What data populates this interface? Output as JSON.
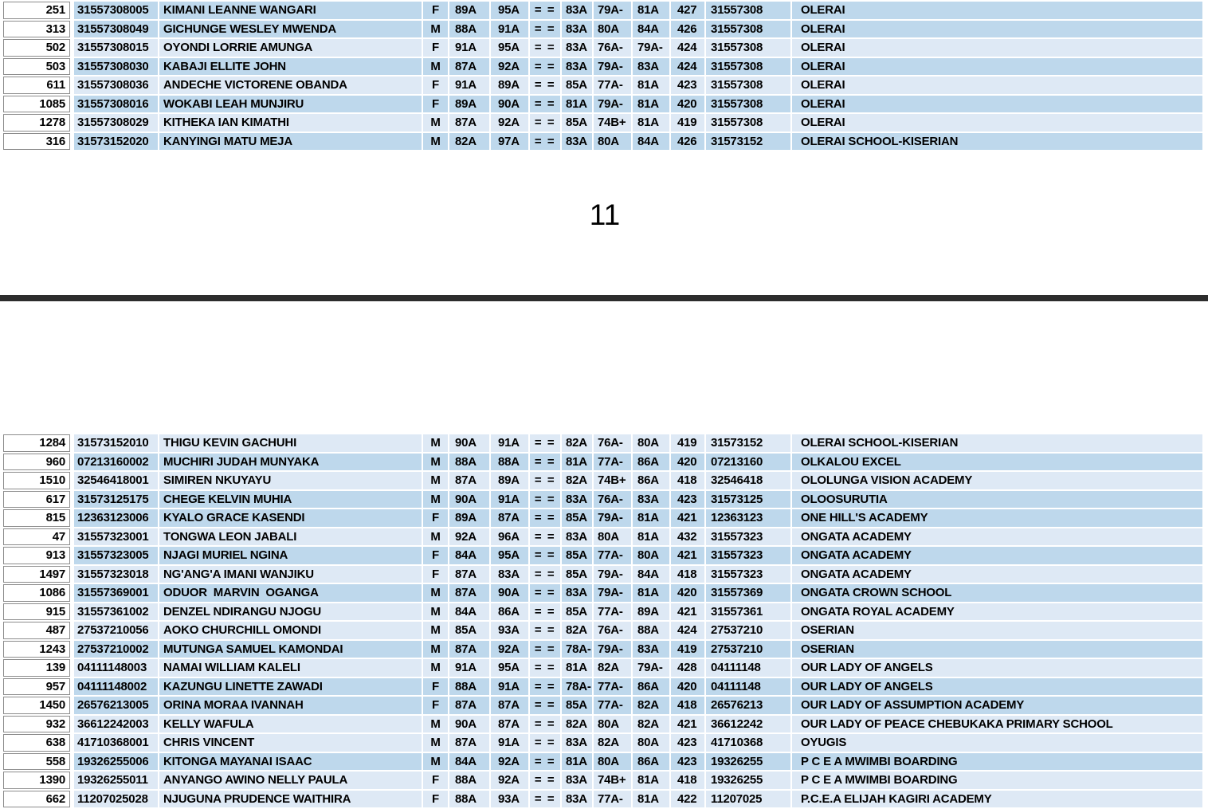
{
  "page": {
    "page_number": "11"
  },
  "divider": {
    "color": "#2d2d2d"
  },
  "colors": {
    "band_medium": "#BED8EC",
    "band_light": "#DEE9F5",
    "rank_cell_border": "#8C8C8C",
    "text": "#000000",
    "background": "#FFFFFF"
  },
  "sections": [
    {
      "name": "top-table",
      "rows": [
        {
          "rank": "251",
          "index_number": "31557308005",
          "name": "KIMANI LEANNE WANGARI",
          "gender": "F",
          "score1": "89A",
          "score2": "95A",
          "masked": "= =",
          "score3": "83A",
          "score4": "79A-",
          "score5": "81A",
          "total": "427",
          "school_code": "31557308",
          "school_name": "OLERAI",
          "shade": "medium"
        },
        {
          "rank": "313",
          "index_number": "31557308049",
          "name": "GICHUNGE WESLEY MWENDA",
          "gender": "M",
          "score1": "88A",
          "score2": "91A",
          "masked": "= =",
          "score3": "83A",
          "score4": "80A",
          "score5": "84A",
          "total": "426",
          "school_code": "31557308",
          "school_name": "OLERAI",
          "shade": "medium"
        },
        {
          "rank": "502",
          "index_number": "31557308015",
          "name": "OYONDI LORRIE AMUNGA",
          "gender": "F",
          "score1": "91A",
          "score2": "95A",
          "masked": "= =",
          "score3": "83A",
          "score4": "76A-",
          "score5": "79A-",
          "total": "424",
          "school_code": "31557308",
          "school_name": "OLERAI",
          "shade": "light"
        },
        {
          "rank": "503",
          "index_number": "31557308030",
          "name": "KABAJI ELLITE JOHN",
          "gender": "M",
          "score1": "87A",
          "score2": "92A",
          "masked": "= =",
          "score3": "83A",
          "score4": "79A-",
          "score5": "83A",
          "total": "424",
          "school_code": "31557308",
          "school_name": "OLERAI",
          "shade": "medium"
        },
        {
          "rank": "611",
          "index_number": "31557308036",
          "name": "ANDECHE VICTORENE OBANDA",
          "gender": "F",
          "score1": "91A",
          "score2": "89A",
          "masked": "= =",
          "score3": "85A",
          "score4": "77A-",
          "score5": "81A",
          "total": "423",
          "school_code": "31557308",
          "school_name": "OLERAI",
          "shade": "light"
        },
        {
          "rank": "1085",
          "index_number": "31557308016",
          "name": "WOKABI LEAH MUNJIRU",
          "gender": "F",
          "score1": "89A",
          "score2": "90A",
          "masked": "= =",
          "score3": "81A",
          "score4": "79A-",
          "score5": "81A",
          "total": "420",
          "school_code": "31557308",
          "school_name": "OLERAI",
          "shade": "medium"
        },
        {
          "rank": "1278",
          "index_number": "31557308029",
          "name": "KITHEKA IAN KIMATHI",
          "gender": "M",
          "score1": "87A",
          "score2": "92A",
          "masked": "= =",
          "score3": "85A",
          "score4": "74B+",
          "score5": "81A",
          "total": "419",
          "school_code": "31557308",
          "school_name": "OLERAI",
          "shade": "light"
        },
        {
          "rank": "316",
          "index_number": "31573152020",
          "name": "KANYINGI MATU MEJA",
          "gender": "M",
          "score1": "82A",
          "score2": "97A",
          "masked": "= =",
          "score3": "83A",
          "score4": "80A",
          "score5": "84A",
          "total": "426",
          "school_code": "31573152",
          "school_name": "OLERAI SCHOOL-KISERIAN",
          "shade": "medium"
        }
      ]
    },
    {
      "name": "bottom-table",
      "rows": [
        {
          "rank": "1284",
          "index_number": "31573152010",
          "name": "THIGU KEVIN GACHUHI",
          "gender": "M",
          "score1": "90A",
          "score2": "91A",
          "masked": "= =",
          "score3": "82A",
          "score4": "76A-",
          "score5": "80A",
          "total": "419",
          "school_code": "31573152",
          "school_name": "OLERAI SCHOOL-KISERIAN",
          "shade": "light"
        },
        {
          "rank": "960",
          "index_number": "07213160002",
          "name": "MUCHIRI JUDAH MUNYAKA",
          "gender": "M",
          "score1": "88A",
          "score2": "88A",
          "masked": "= =",
          "score3": "81A",
          "score4": "77A-",
          "score5": "86A",
          "total": "420",
          "school_code": "07213160",
          "school_name": "OLKALOU EXCEL",
          "shade": "medium"
        },
        {
          "rank": "1510",
          "index_number": "32546418001",
          "name": "SIMIREN NKUYAYU",
          "gender": "M",
          "score1": "87A",
          "score2": "89A",
          "masked": "= =",
          "score3": "82A",
          "score4": "74B+",
          "score5": "86A",
          "total": "418",
          "school_code": "32546418",
          "school_name": "OLOLUNGA VISION ACADEMY",
          "shade": "light"
        },
        {
          "rank": "617",
          "index_number": "31573125175",
          "name": "CHEGE KELVIN MUHIA",
          "gender": "M",
          "score1": "90A",
          "score2": "91A",
          "masked": "= =",
          "score3": "83A",
          "score4": "76A-",
          "score5": "83A",
          "total": "423",
          "school_code": "31573125",
          "school_name": "OLOOSURUTIA",
          "shade": "medium"
        },
        {
          "rank": "815",
          "index_number": "12363123006",
          "name": "KYALO GRACE KASENDI",
          "gender": "F",
          "score1": "89A",
          "score2": "87A",
          "masked": "= =",
          "score3": "85A",
          "score4": "79A-",
          "score5": "81A",
          "total": "421",
          "school_code": "12363123",
          "school_name": "ONE HILL'S ACADEMY",
          "shade": "medium"
        },
        {
          "rank": "47",
          "index_number": "31557323001",
          "name": "TONGWA LEON JABALI",
          "gender": "M",
          "score1": "92A",
          "score2": "96A",
          "masked": "= =",
          "score3": "83A",
          "score4": "80A",
          "score5": "81A",
          "total": "432",
          "school_code": "31557323",
          "school_name": "ONGATA ACADEMY",
          "shade": "light"
        },
        {
          "rank": "913",
          "index_number": "31557323005",
          "name": "NJAGI MURIEL NGINA",
          "gender": "F",
          "score1": "84A",
          "score2": "95A",
          "masked": "= =",
          "score3": "85A",
          "score4": "77A-",
          "score5": "80A",
          "total": "421",
          "school_code": "31557323",
          "school_name": "ONGATA ACADEMY",
          "shade": "medium"
        },
        {
          "rank": "1497",
          "index_number": "31557323018",
          "name": "NG'ANG'A IMANI WANJIKU",
          "gender": "F",
          "score1": "87A",
          "score2": "83A",
          "masked": "= =",
          "score3": "85A",
          "score4": "79A-",
          "score5": "84A",
          "total": "418",
          "school_code": "31557323",
          "school_name": "ONGATA ACADEMY",
          "shade": "light"
        },
        {
          "rank": "1086",
          "index_number": "31557369001",
          "name": "ODUOR  MARVIN  OGANGA",
          "gender": "M",
          "score1": "87A",
          "score2": "90A",
          "masked": "= =",
          "score3": "83A",
          "score4": "79A-",
          "score5": "81A",
          "total": "420",
          "school_code": "31557369",
          "school_name": "ONGATA CROWN SCHOOL",
          "shade": "medium"
        },
        {
          "rank": "915",
          "index_number": "31557361002",
          "name": "DENZEL NDIRANGU NJOGU",
          "gender": "M",
          "score1": "84A",
          "score2": "86A",
          "masked": "= =",
          "score3": "85A",
          "score4": "77A-",
          "score5": "89A",
          "total": "421",
          "school_code": "31557361",
          "school_name": "ONGATA ROYAL ACADEMY",
          "shade": "light"
        },
        {
          "rank": "487",
          "index_number": "27537210056",
          "name": "AOKO CHURCHILL OMONDI",
          "gender": "M",
          "score1": "85A",
          "score2": "93A",
          "masked": "= =",
          "score3": "82A",
          "score4": "76A-",
          "score5": "88A",
          "total": "424",
          "school_code": "27537210",
          "school_name": "OSERIAN",
          "shade": "light"
        },
        {
          "rank": "1243",
          "index_number": "27537210002",
          "name": "MUTUNGA SAMUEL KAMONDAI",
          "gender": "M",
          "score1": "87A",
          "score2": "92A",
          "masked": "= =",
          "score3": "78A-",
          "score4": "79A-",
          "score5": "83A",
          "total": "419",
          "school_code": "27537210",
          "school_name": "OSERIAN",
          "shade": "medium"
        },
        {
          "rank": "139",
          "index_number": "04111148003",
          "name": "NAMAI WILLIAM KALELI",
          "gender": "M",
          "score1": "91A",
          "score2": "95A",
          "masked": "= =",
          "score3": "81A",
          "score4": "82A",
          "score5": "79A-",
          "total": "428",
          "school_code": "04111148",
          "school_name": "OUR LADY OF ANGELS",
          "shade": "light"
        },
        {
          "rank": "957",
          "index_number": "04111148002",
          "name": "KAZUNGU LINETTE ZAWADI",
          "gender": "F",
          "score1": "88A",
          "score2": "91A",
          "masked": "= =",
          "score3": "78A-",
          "score4": "77A-",
          "score5": "86A",
          "total": "420",
          "school_code": "04111148",
          "school_name": "OUR LADY OF ANGELS",
          "shade": "medium"
        },
        {
          "rank": "1450",
          "index_number": "26576213005",
          "name": "ORINA MORAA IVANNAH",
          "gender": "F",
          "score1": "87A",
          "score2": "87A",
          "masked": "= =",
          "score3": "85A",
          "score4": "77A-",
          "score5": "82A",
          "total": "418",
          "school_code": "26576213",
          "school_name": "OUR LADY OF ASSUMPTION ACADEMY",
          "shade": "medium"
        },
        {
          "rank": "932",
          "index_number": "36612242003",
          "name": "KELLY WAFULA",
          "gender": "M",
          "score1": "90A",
          "score2": "87A",
          "masked": "= =",
          "score3": "82A",
          "score4": "80A",
          "score5": "82A",
          "total": "421",
          "school_code": "36612242",
          "school_name": "OUR LADY OF PEACE CHEBUKAKA PRIMARY SCHOOL",
          "shade": "light"
        },
        {
          "rank": "638",
          "index_number": "41710368001",
          "name": "CHRIS VINCENT",
          "gender": "M",
          "score1": "87A",
          "score2": "91A",
          "masked": "= =",
          "score3": "83A",
          "score4": "82A",
          "score5": "80A",
          "total": "423",
          "school_code": "41710368",
          "school_name": "OYUGIS",
          "shade": "light"
        },
        {
          "rank": "558",
          "index_number": "19326255006",
          "name": "KITONGA MAYANAI ISAAC",
          "gender": "M",
          "score1": "84A",
          "score2": "92A",
          "masked": "= =",
          "score3": "81A",
          "score4": "80A",
          "score5": "86A",
          "total": "423",
          "school_code": "19326255",
          "school_name": "P C E A MWIMBI BOARDING",
          "shade": "medium"
        },
        {
          "rank": "1390",
          "index_number": "19326255011",
          "name": "ANYANGO AWINO NELLY PAULA",
          "gender": "F",
          "score1": "88A",
          "score2": "92A",
          "masked": "= =",
          "score3": "83A",
          "score4": "74B+",
          "score5": "81A",
          "total": "418",
          "school_code": "19326255",
          "school_name": "P C E A MWIMBI BOARDING",
          "shade": "light"
        },
        {
          "rank": "662",
          "index_number": "11207025028",
          "name": "NJUGUNA PRUDENCE WAITHIRA",
          "gender": "F",
          "score1": "88A",
          "score2": "93A",
          "masked": "= =",
          "score3": "83A",
          "score4": "77A-",
          "score5": "81A",
          "total": "422",
          "school_code": "11207025",
          "school_name": "P.C.E.A ELIJAH KAGIRI ACADEMY",
          "shade": "light"
        }
      ]
    }
  ]
}
